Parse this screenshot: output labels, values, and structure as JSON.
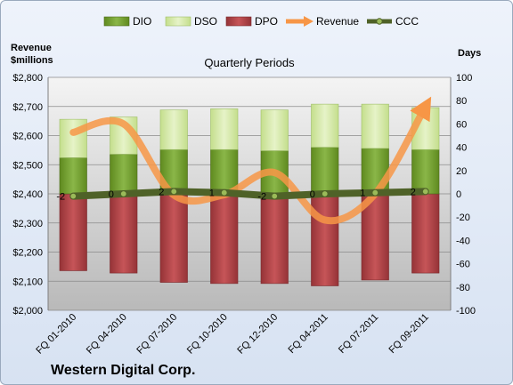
{
  "chart_data": {
    "type": "bar",
    "title": "Quarterly Periods",
    "company": "Western Digital Corp.",
    "left_axis_label": [
      "Revenue",
      "$millions"
    ],
    "right_axis_label": "Days",
    "categories": [
      "FQ 01-2010",
      "FQ 04-2010",
      "FQ 07-2010",
      "FQ 10-2010",
      "FQ 12-2010",
      "FQ 04-2011",
      "FQ 07-2011",
      "FQ 09-2011"
    ],
    "left_ylim": [
      2000,
      2800
    ],
    "left_ticks": [
      "$2,000",
      "$2,100",
      "$2,200",
      "$2,300",
      "$2,400",
      "$2,500",
      "$2,600",
      "$2,700",
      "$2,800"
    ],
    "right_ylim": [
      -100,
      100
    ],
    "right_ticks": [
      "-100",
      "-80",
      "-60",
      "-40",
      "-20",
      "0",
      "20",
      "40",
      "60",
      "80",
      "100"
    ],
    "series": [
      {
        "name": "DIO",
        "kind": "bar",
        "color": "#77a033",
        "values": [
          31,
          34,
          38,
          38,
          37,
          40,
          39,
          38
        ]
      },
      {
        "name": "DSO",
        "kind": "bar",
        "color": "#d6e9ae",
        "values": [
          33,
          32,
          34,
          35,
          35,
          37,
          38,
          36
        ]
      },
      {
        "name": "DPO",
        "kind": "bar",
        "color": "#b5474a",
        "values": [
          -66,
          -68,
          -76,
          -77,
          -77,
          -79,
          -74,
          -68
        ]
      },
      {
        "name": "Revenue",
        "kind": "line",
        "color": "#f79646",
        "values": [
          2611,
          2640,
          2396,
          2397,
          2473,
          2310,
          2400,
          2700
        ]
      },
      {
        "name": "CCC",
        "kind": "line",
        "color": "#4f6228",
        "values": [
          -2,
          0,
          2,
          1,
          -2,
          0,
          1,
          2
        ]
      }
    ],
    "data_labels": [
      "-2",
      "0",
      "2",
      "1",
      "-2",
      "0",
      "1",
      "2"
    ],
    "legend": "top",
    "grid": true
  }
}
